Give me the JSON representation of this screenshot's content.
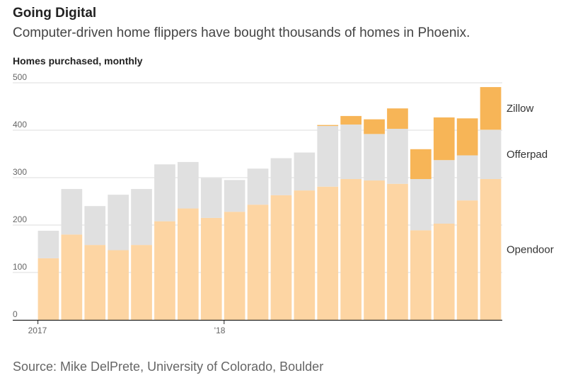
{
  "header": {
    "title": "Going Digital",
    "subtitle": "Computer-driven home flippers have bought thousands of homes in Phoenix.",
    "axis_caption": "Homes purchased, monthly"
  },
  "source": "Source: Mike DelPrete, University of Colorado, Boulder",
  "colors": {
    "opendoor": "#fdd5a3",
    "offerpad": "#e0e0e0",
    "zillow": "#f7b557",
    "grid": "#dddddd",
    "axis": "#222222"
  },
  "chart_data": {
    "type": "bar",
    "stacked": true,
    "title": "Going Digital",
    "ylabel": "Homes purchased, monthly",
    "ylim": [
      0,
      500
    ],
    "yticks": [
      0,
      100,
      200,
      300,
      400,
      500
    ],
    "xtick_labels": [
      {
        "index": 0,
        "label": "2017"
      },
      {
        "index": 8,
        "label": "'18"
      }
    ],
    "legend": [
      "Zillow",
      "Offerpad",
      "Opendoor"
    ],
    "series": [
      {
        "name": "Opendoor",
        "values": [
          130,
          180,
          158,
          147,
          158,
          208,
          235,
          215,
          228,
          243,
          263,
          273,
          281,
          297,
          294,
          287,
          189,
          203,
          252,
          297
        ]
      },
      {
        "name": "Offerpad",
        "values": [
          58,
          96,
          82,
          117,
          118,
          120,
          98,
          84,
          67,
          76,
          78,
          80,
          128,
          115,
          98,
          116,
          108,
          134,
          95,
          104
        ]
      },
      {
        "name": "Zillow",
        "values": [
          0,
          0,
          0,
          0,
          0,
          0,
          0,
          0,
          0,
          0,
          0,
          0,
          2,
          18,
          31,
          43,
          63,
          90,
          78,
          90
        ]
      }
    ]
  }
}
